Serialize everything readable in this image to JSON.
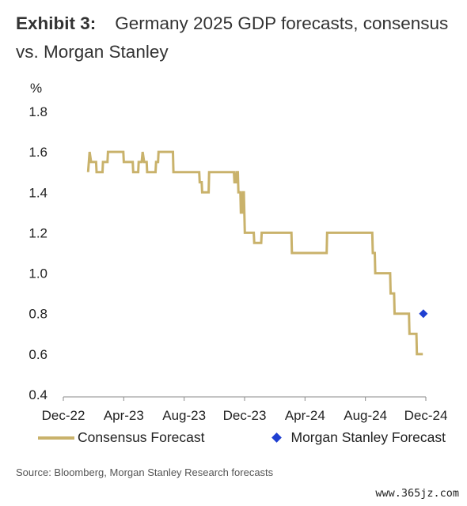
{
  "header": {
    "exhibit": "Exhibit 3:",
    "title": "Germany 2025 GDP forecasts, consensus vs. Morgan Stanley"
  },
  "chart_data": {
    "type": "line",
    "ylabel": "%",
    "ylim": [
      0.4,
      1.8
    ],
    "yticks": [
      "0.4",
      "0.6",
      "0.8",
      "1.0",
      "1.2",
      "1.4",
      "1.6",
      "1.8"
    ],
    "xticks": [
      "Dec-22",
      "Apr-23",
      "Aug-23",
      "Dec-23",
      "Apr-24",
      "Aug-24",
      "Dec-24"
    ],
    "xlim": [
      "2022-12-01",
      "2024-12-01"
    ],
    "grid": false,
    "legend_position": "bottom",
    "series": [
      {
        "name": "Consensus Forecast",
        "color": "#c9b26b",
        "style": "step-line",
        "points": [
          [
            "2023-01-20",
            1.5
          ],
          [
            "2023-01-23",
            1.6
          ],
          [
            "2023-01-26",
            1.55
          ],
          [
            "2023-02-05",
            1.55
          ],
          [
            "2023-02-06",
            1.5
          ],
          [
            "2023-02-18",
            1.5
          ],
          [
            "2023-02-19",
            1.55
          ],
          [
            "2023-02-28",
            1.55
          ],
          [
            "2023-03-01",
            1.6
          ],
          [
            "2023-04-01",
            1.6
          ],
          [
            "2023-04-02",
            1.55
          ],
          [
            "2023-04-20",
            1.55
          ],
          [
            "2023-04-21",
            1.5
          ],
          [
            "2023-05-01",
            1.5
          ],
          [
            "2023-05-02",
            1.55
          ],
          [
            "2023-05-08",
            1.55
          ],
          [
            "2023-05-10",
            1.6
          ],
          [
            "2023-05-13",
            1.55
          ],
          [
            "2023-05-18",
            1.55
          ],
          [
            "2023-05-19",
            1.5
          ],
          [
            "2023-06-05",
            1.5
          ],
          [
            "2023-06-06",
            1.55
          ],
          [
            "2023-06-10",
            1.55
          ],
          [
            "2023-06-11",
            1.6
          ],
          [
            "2023-07-10",
            1.6
          ],
          [
            "2023-07-11",
            1.5
          ],
          [
            "2023-09-01",
            1.5
          ],
          [
            "2023-09-02",
            1.45
          ],
          [
            "2023-09-06",
            1.45
          ],
          [
            "2023-09-07",
            1.4
          ],
          [
            "2023-09-20",
            1.4
          ],
          [
            "2023-09-21",
            1.5
          ],
          [
            "2023-11-10",
            1.5
          ],
          [
            "2023-11-11",
            1.45
          ],
          [
            "2023-11-14",
            1.45
          ],
          [
            "2023-11-15",
            1.5
          ],
          [
            "2023-11-18",
            1.5
          ],
          [
            "2023-11-19",
            1.4
          ],
          [
            "2023-11-23",
            1.4
          ],
          [
            "2023-11-24",
            1.3
          ],
          [
            "2023-11-27",
            1.3
          ],
          [
            "2023-11-28",
            1.4
          ],
          [
            "2023-11-30",
            1.4
          ],
          [
            "2023-12-02",
            1.2
          ],
          [
            "2023-12-20",
            1.2
          ],
          [
            "2023-12-21",
            1.15
          ],
          [
            "2024-01-04",
            1.15
          ],
          [
            "2024-01-05",
            1.2
          ],
          [
            "2024-03-05",
            1.2
          ],
          [
            "2024-03-06",
            1.1
          ],
          [
            "2024-05-15",
            1.1
          ],
          [
            "2024-05-16",
            1.2
          ],
          [
            "2024-08-15",
            1.2
          ],
          [
            "2024-08-16",
            1.1
          ],
          [
            "2024-08-20",
            1.1
          ],
          [
            "2024-08-21",
            1.0
          ],
          [
            "2024-09-20",
            1.0
          ],
          [
            "2024-09-21",
            0.9
          ],
          [
            "2024-09-28",
            0.9
          ],
          [
            "2024-09-29",
            0.8
          ],
          [
            "2024-10-28",
            0.8
          ],
          [
            "2024-10-29",
            0.7
          ],
          [
            "2024-11-12",
            0.7
          ],
          [
            "2024-11-13",
            0.6
          ],
          [
            "2024-11-25",
            0.6
          ]
        ]
      },
      {
        "name": "Morgan Stanley Forecast",
        "color": "#1f3fd1",
        "style": "marker-diamond",
        "points": [
          [
            "2024-11-26",
            0.8
          ]
        ]
      }
    ]
  },
  "legend": {
    "consensus_label": "Consensus Forecast",
    "ms_label": "Morgan Stanley Forecast"
  },
  "source": "Source: Bloomberg, Morgan Stanley Research forecasts",
  "watermark": "www.365jz.com"
}
